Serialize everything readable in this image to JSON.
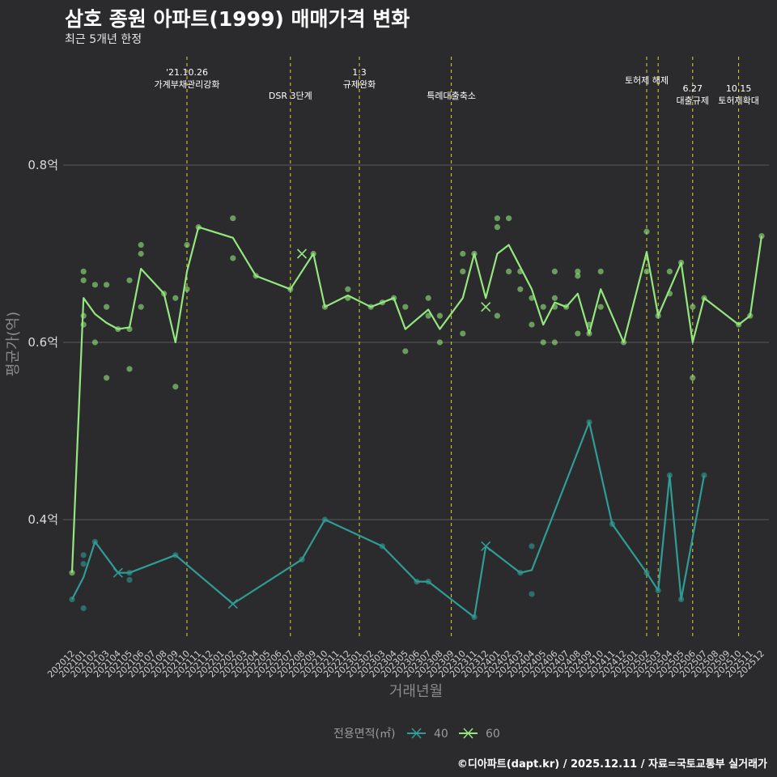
{
  "header": {
    "title": "삼호 종원 아파트(1999) 매매가격 변화",
    "subtitle": "최근 5개년 한정"
  },
  "footer": {
    "caption": "©디아파트(dapt.kr) / 2025.12.11 / 자료=국토교통부 실거래가"
  },
  "colors": {
    "background": "#2b2b2d",
    "grid": "#5a5a5a",
    "series_40": "#2f9c95",
    "series_60": "#94e77f",
    "event_line": "#d7d43a"
  },
  "chart_data": {
    "type": "line",
    "title": "삼호 종원 아파트(1999) 매매가격 변화",
    "subtitle": "최근 5개년 한정",
    "xlabel": "거래년월",
    "ylabel": "평균가(억)",
    "ylim": [
      0.26,
      0.81
    ],
    "y_ticks": [
      0.4,
      0.6,
      0.8
    ],
    "y_tick_labels": [
      "0.4억",
      "0.6억",
      "0.8억"
    ],
    "categories": [
      "202012",
      "202101",
      "202102",
      "202103",
      "202104",
      "202105",
      "202106",
      "202107",
      "202108",
      "202109",
      "202110",
      "202111",
      "202112",
      "202201",
      "202202",
      "202203",
      "202204",
      "202205",
      "202206",
      "202207",
      "202208",
      "202209",
      "202210",
      "202211",
      "202212",
      "202301",
      "202302",
      "202303",
      "202304",
      "202305",
      "202306",
      "202307",
      "202308",
      "202309",
      "202310",
      "202311",
      "202312",
      "202401",
      "202402",
      "202403",
      "202404",
      "202405",
      "202406",
      "202407",
      "202408",
      "202409",
      "202410",
      "202411",
      "202412",
      "202501",
      "202502",
      "202503",
      "202504",
      "202505",
      "202506",
      "202507",
      "202508",
      "202509",
      "202510",
      "202511",
      "202512"
    ],
    "legend_title": "전용면적(㎡)",
    "series": [
      {
        "name": "40",
        "line": [
          [
            0,
            0.31
          ],
          [
            1,
            0.335
          ],
          [
            2,
            0.375
          ],
          [
            4,
            0.34
          ],
          [
            5,
            0.34
          ],
          [
            9,
            0.36
          ],
          [
            14,
            0.305
          ],
          [
            20,
            0.355
          ],
          [
            22,
            0.4
          ],
          [
            27,
            0.37
          ],
          [
            30,
            0.33
          ],
          [
            31,
            0.33
          ],
          [
            35,
            0.29
          ],
          [
            36,
            0.37
          ],
          [
            39,
            0.34
          ],
          [
            40,
            0.343
          ],
          [
            45,
            0.51
          ],
          [
            47,
            0.395
          ],
          [
            50,
            0.34
          ],
          [
            51,
            0.32
          ],
          [
            52,
            0.45
          ],
          [
            53,
            0.31
          ],
          [
            55,
            0.45
          ]
        ],
        "points": [
          [
            0,
            0.31
          ],
          [
            1,
            0.36
          ],
          [
            1,
            0.35
          ],
          [
            1,
            0.3
          ],
          [
            2,
            0.375
          ],
          [
            5,
            0.34
          ],
          [
            5,
            0.332
          ],
          [
            9,
            0.36
          ],
          [
            20,
            0.355
          ],
          [
            22,
            0.4
          ],
          [
            27,
            0.37
          ],
          [
            30,
            0.33
          ],
          [
            31,
            0.33
          ],
          [
            35,
            0.29
          ],
          [
            39,
            0.34
          ],
          [
            40,
            0.37
          ],
          [
            40,
            0.316
          ],
          [
            45,
            0.51
          ],
          [
            47,
            0.395
          ],
          [
            50,
            0.34
          ],
          [
            51,
            0.32
          ],
          [
            52,
            0.45
          ],
          [
            53,
            0.31
          ],
          [
            55,
            0.45
          ]
        ],
        "crosses": [
          [
            4,
            0.34
          ],
          [
            14,
            0.305
          ],
          [
            36,
            0.37
          ]
        ]
      },
      {
        "name": "60",
        "line": [
          [
            0,
            0.34
          ],
          [
            1,
            0.65
          ],
          [
            2,
            0.632
          ],
          [
            3,
            0.622
          ],
          [
            4,
            0.615
          ],
          [
            5,
            0.617
          ],
          [
            6,
            0.683
          ],
          [
            8,
            0.655
          ],
          [
            9,
            0.6
          ],
          [
            10,
            0.68
          ],
          [
            11,
            0.73
          ],
          [
            14,
            0.718
          ],
          [
            16,
            0.675
          ],
          [
            19,
            0.66
          ],
          [
            21,
            0.7
          ],
          [
            22,
            0.64
          ],
          [
            24,
            0.653
          ],
          [
            26,
            0.64
          ],
          [
            27,
            0.645
          ],
          [
            28,
            0.65
          ],
          [
            29,
            0.615
          ],
          [
            31,
            0.637
          ],
          [
            32,
            0.615
          ],
          [
            34,
            0.65
          ],
          [
            35,
            0.7
          ],
          [
            36,
            0.65
          ],
          [
            37,
            0.7
          ],
          [
            38,
            0.71
          ],
          [
            40,
            0.66
          ],
          [
            41,
            0.62
          ],
          [
            42,
            0.645
          ],
          [
            43,
            0.64
          ],
          [
            44,
            0.655
          ],
          [
            45,
            0.61
          ],
          [
            46,
            0.66
          ],
          [
            48,
            0.6
          ],
          [
            50,
            0.702
          ],
          [
            51,
            0.63
          ],
          [
            53,
            0.69
          ],
          [
            54,
            0.6
          ],
          [
            55,
            0.65
          ],
          [
            58,
            0.62
          ],
          [
            59,
            0.63
          ],
          [
            60,
            0.72
          ]
        ],
        "points": [
          [
            0,
            0.34
          ],
          [
            1,
            0.68
          ],
          [
            1,
            0.67
          ],
          [
            1,
            0.63
          ],
          [
            1,
            0.62
          ],
          [
            2,
            0.665
          ],
          [
            2,
            0.6
          ],
          [
            3,
            0.665
          ],
          [
            3,
            0.64
          ],
          [
            3,
            0.56
          ],
          [
            4,
            0.615
          ],
          [
            5,
            0.67
          ],
          [
            5,
            0.615
          ],
          [
            5,
            0.57
          ],
          [
            6,
            0.71
          ],
          [
            6,
            0.7
          ],
          [
            6,
            0.64
          ],
          [
            8,
            0.655
          ],
          [
            9,
            0.65
          ],
          [
            9,
            0.55
          ],
          [
            10,
            0.71
          ],
          [
            10,
            0.66
          ],
          [
            11,
            0.73
          ],
          [
            14,
            0.74
          ],
          [
            14,
            0.695
          ],
          [
            16,
            0.675
          ],
          [
            19,
            0.66
          ],
          [
            21,
            0.7
          ],
          [
            22,
            0.64
          ],
          [
            24,
            0.66
          ],
          [
            24,
            0.65
          ],
          [
            26,
            0.64
          ],
          [
            27,
            0.645
          ],
          [
            28,
            0.65
          ],
          [
            29,
            0.64
          ],
          [
            29,
            0.59
          ],
          [
            31,
            0.65
          ],
          [
            31,
            0.63
          ],
          [
            32,
            0.63
          ],
          [
            32,
            0.6
          ],
          [
            34,
            0.7
          ],
          [
            34,
            0.68
          ],
          [
            34,
            0.61
          ],
          [
            35,
            0.7
          ],
          [
            37,
            0.74
          ],
          [
            37,
            0.73
          ],
          [
            37,
            0.63
          ],
          [
            38,
            0.74
          ],
          [
            38,
            0.68
          ],
          [
            39,
            0.68
          ],
          [
            39,
            0.66
          ],
          [
            40,
            0.65
          ],
          [
            40,
            0.62
          ],
          [
            41,
            0.64
          ],
          [
            41,
            0.6
          ],
          [
            42,
            0.68
          ],
          [
            42,
            0.65
          ],
          [
            42,
            0.64
          ],
          [
            42,
            0.6
          ],
          [
            43,
            0.64
          ],
          [
            44,
            0.68
          ],
          [
            44,
            0.675
          ],
          [
            44,
            0.61
          ],
          [
            45,
            0.62
          ],
          [
            45,
            0.61
          ],
          [
            46,
            0.68
          ],
          [
            46,
            0.64
          ],
          [
            48,
            0.6
          ],
          [
            50,
            0.725
          ],
          [
            50,
            0.68
          ],
          [
            51,
            0.63
          ],
          [
            52,
            0.68
          ],
          [
            52,
            0.655
          ],
          [
            53,
            0.69
          ],
          [
            54,
            0.64
          ],
          [
            54,
            0.56
          ],
          [
            55,
            0.65
          ],
          [
            58,
            0.62
          ],
          [
            59,
            0.63
          ],
          [
            60,
            0.72
          ]
        ],
        "crosses": [
          [
            20,
            0.7
          ],
          [
            36,
            0.64
          ]
        ]
      }
    ],
    "events": [
      {
        "index": 10,
        "label": [
          "'21.10.26",
          "가계부채관리강화"
        ],
        "row": "top"
      },
      {
        "index": 19,
        "label": [
          "DSR 3단계"
        ],
        "row": "low"
      },
      {
        "index": 25,
        "label": [
          "1.3",
          "규제완화"
        ],
        "row": "top"
      },
      {
        "index": 33,
        "label": [
          "특례대출축소"
        ],
        "row": "low"
      },
      {
        "index": 50,
        "label": [
          "토허제 해제"
        ],
        "row": "mid"
      },
      {
        "index": 51,
        "label": [],
        "row": "mid"
      },
      {
        "index": 54,
        "label": [
          "6.27",
          "대출규제"
        ],
        "row": "high"
      },
      {
        "index": 58,
        "label": [
          "10.15",
          "토허제확대"
        ],
        "row": "high"
      }
    ]
  }
}
